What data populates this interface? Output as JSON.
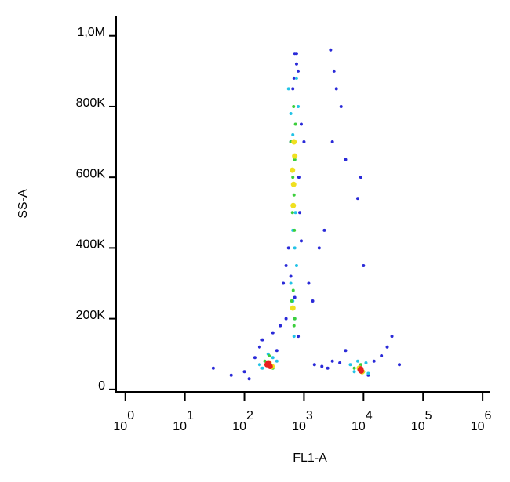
{
  "chart_data": {
    "type": "scatter",
    "x_label": "FL1-A",
    "y_label": "SS-A",
    "xscale": "log",
    "xlim": [
      0.7,
      1350000
    ],
    "ylim": [
      -7000,
      1057000
    ],
    "xticks": [
      {
        "value": 1,
        "label": "10",
        "exponent": "0"
      },
      {
        "value": 10,
        "label": "10",
        "exponent": "1"
      },
      {
        "value": 100,
        "label": "10",
        "exponent": "2"
      },
      {
        "value": 1000,
        "label": "10",
        "exponent": "3"
      },
      {
        "value": 10000,
        "label": "10",
        "exponent": "4"
      },
      {
        "value": 100000,
        "label": "10",
        "exponent": "5"
      },
      {
        "value": 1000000,
        "label": "10",
        "exponent": "6"
      }
    ],
    "yticks": [
      0,
      {
        "value": 200000,
        "label": "200K"
      },
      {
        "value": 400000,
        "label": "400K"
      },
      {
        "value": 600000,
        "label": "600K"
      },
      {
        "value": 800000,
        "label": "800K"
      },
      {
        "value": 1000000,
        "label": "1,0M"
      }
    ],
    "series": [
      {
        "color": "#2a2ad8",
        "x": [
          30,
          60,
          100,
          150,
          180,
          120,
          200,
          300,
          400,
          500,
          350,
          450,
          1500,
          2000,
          3000,
          2500,
          4000,
          5000,
          15000,
          20000,
          30000,
          12000,
          40000,
          25000,
          700,
          750,
          800,
          650,
          600,
          900,
          850,
          550,
          500,
          2800,
          3200,
          3500,
          4200,
          3000,
          5000,
          9000,
          8000,
          10000,
          1200,
          1400,
          1800,
          2200,
          600,
          700,
          800,
          900,
          750,
          680,
          820,
          1000
        ],
        "values": [
          60000,
          40000,
          50000,
          90000,
          120000,
          30000,
          140000,
          160000,
          180000,
          200000,
          110000,
          300000,
          70000,
          65000,
          80000,
          60000,
          75000,
          110000,
          80000,
          95000,
          150000,
          40000,
          70000,
          120000,
          950000,
          920000,
          900000,
          850000,
          700000,
          750000,
          500000,
          400000,
          350000,
          960000,
          900000,
          850000,
          800000,
          700000,
          650000,
          600000,
          540000,
          350000,
          300000,
          250000,
          400000,
          450000,
          320000,
          260000,
          150000,
          420000,
          950000,
          880000,
          600000,
          700000
        ]
      },
      {
        "color": "#22c3e6",
        "x": [
          550,
          600,
          650,
          700,
          750,
          800,
          600,
          650,
          700,
          750,
          200,
          250,
          300,
          180,
          350,
          7000,
          8000,
          11000,
          12000,
          6000,
          650,
          700,
          720,
          680
        ],
        "values": [
          850000,
          780000,
          720000,
          650000,
          880000,
          800000,
          300000,
          250000,
          200000,
          350000,
          60000,
          100000,
          90000,
          70000,
          80000,
          50000,
          80000,
          75000,
          45000,
          70000,
          450000,
          400000,
          500000,
          150000
        ]
      },
      {
        "color": "#3ccf3c",
        "x": [
          600,
          650,
          700,
          680,
          720,
          640,
          660,
          700,
          620,
          680,
          220,
          300,
          260,
          9000,
          7000,
          10000,
          670,
          690
        ],
        "values": [
          700000,
          600000,
          650000,
          550000,
          750000,
          500000,
          280000,
          200000,
          250000,
          180000,
          80000,
          60000,
          95000,
          70000,
          60000,
          50000,
          800000,
          450000
        ]
      },
      {
        "color": "#f0e020",
        "x": [
          640,
          670,
          700,
          660,
          680,
          650,
          260,
          290,
          8500,
          9500
        ],
        "values": [
          620000,
          580000,
          660000,
          520000,
          700000,
          230000,
          75000,
          65000,
          60000,
          50000
        ]
      },
      {
        "color": "#e82020",
        "x": [
          240,
          270,
          250,
          8800,
          9200,
          9000
        ],
        "values": [
          70000,
          65000,
          75000,
          55000,
          52000,
          58000
        ]
      }
    ]
  }
}
